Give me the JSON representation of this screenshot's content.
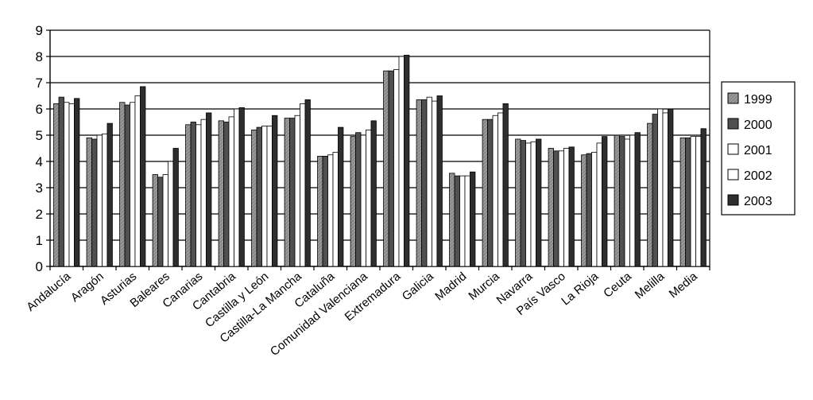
{
  "chart_data": {
    "type": "bar",
    "ylim": [
      0,
      9
    ],
    "yticks": [
      0,
      1,
      2,
      3,
      4,
      5,
      6,
      7,
      8,
      9
    ],
    "grid": "horizontal",
    "legend_position": "right",
    "categories": [
      "Andalucía",
      "Aragón",
      "Asturias",
      "Baleares",
      "Canarias",
      "Cantabria",
      "Castilla y León",
      "Castilla-La Mancha",
      "Cataluña",
      "Comunidad Valenciana",
      "Extremadura",
      "Galicia",
      "Madrid",
      "Murcia",
      "Navarra",
      "País Vasco",
      "La Rioja",
      "Ceuta",
      "Melilla",
      "Media"
    ],
    "series": [
      {
        "name": "1999",
        "color": "#8c8c8c",
        "pattern": "hatch",
        "values": [
          6.2,
          4.9,
          6.25,
          3.5,
          5.4,
          5.55,
          5.2,
          5.65,
          4.2,
          4.95,
          7.45,
          6.35,
          3.55,
          5.6,
          4.85,
          4.5,
          4.25,
          5.0,
          5.45,
          4.9
        ]
      },
      {
        "name": "2000",
        "color": "#505050",
        "pattern": "solid",
        "values": [
          6.45,
          4.85,
          6.15,
          3.4,
          5.5,
          5.5,
          5.3,
          5.65,
          4.2,
          5.1,
          7.45,
          6.35,
          3.45,
          5.6,
          4.8,
          4.4,
          4.3,
          4.95,
          5.8,
          4.9
        ]
      },
      {
        "name": "2001",
        "color": "#ffffff",
        "pattern": "solid",
        "values": [
          6.25,
          5.0,
          6.25,
          3.5,
          5.4,
          5.7,
          5.35,
          5.75,
          4.25,
          5.0,
          7.5,
          6.45,
          3.45,
          5.75,
          4.7,
          4.4,
          4.35,
          4.85,
          6.0,
          4.95
        ]
      },
      {
        "name": "2002",
        "color": "#ffffff",
        "pattern": "solid",
        "values": [
          6.2,
          5.05,
          6.5,
          4.0,
          5.6,
          6.0,
          5.35,
          6.2,
          4.35,
          5.2,
          8.0,
          6.3,
          3.45,
          5.85,
          4.75,
          4.5,
          4.7,
          5.0,
          5.85,
          4.95
        ]
      },
      {
        "name": "2003",
        "color": "#2e2e2e",
        "pattern": "solid",
        "values": [
          6.4,
          5.45,
          6.85,
          4.5,
          5.85,
          6.05,
          5.75,
          6.35,
          5.3,
          5.55,
          8.05,
          6.5,
          3.6,
          6.2,
          4.85,
          4.55,
          4.95,
          5.1,
          6.0,
          5.25
        ]
      }
    ]
  }
}
